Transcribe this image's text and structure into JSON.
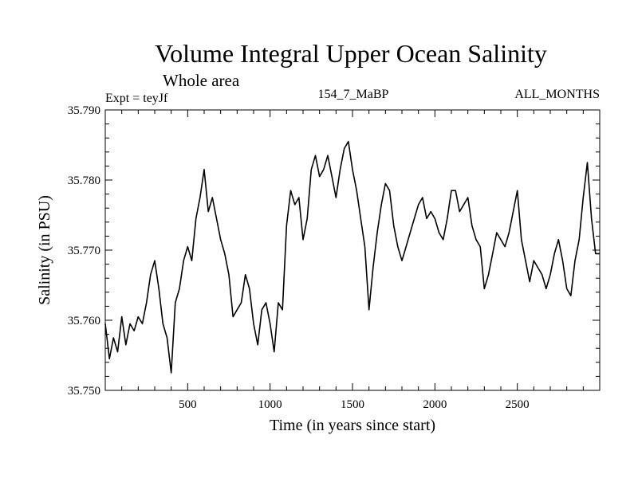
{
  "chart_data": {
    "type": "line",
    "title": "Volume Integral Upper Ocean Salinity",
    "subtitle": "Whole area",
    "experiment": "Expt = teyJf",
    "run_label": "154_7_MaBP",
    "months_label": "ALL_MONTHS",
    "xlabel": "Time (in years since start)",
    "ylabel": "Salinity (in PSU)",
    "xlim": [
      0,
      3000
    ],
    "ylim": [
      35.75,
      35.79
    ],
    "x_ticks": [
      500,
      1000,
      1500,
      2000,
      2500
    ],
    "x_tick_labels": [
      "500",
      "1000",
      "1500",
      "2000",
      "2500"
    ],
    "y_ticks": [
      35.75,
      35.76,
      35.77,
      35.78,
      35.79
    ],
    "y_tick_labels": [
      "35.750",
      "35.760",
      "35.770",
      "35.780",
      "35.790"
    ],
    "line_color": "#000000",
    "series": [
      {
        "name": "salinity",
        "x": [
          0,
          25,
          50,
          75,
          100,
          125,
          150,
          175,
          200,
          225,
          250,
          275,
          300,
          325,
          350,
          375,
          400,
          425,
          450,
          475,
          500,
          525,
          550,
          575,
          600,
          625,
          650,
          675,
          700,
          725,
          750,
          775,
          800,
          825,
          850,
          875,
          900,
          925,
          950,
          975,
          1000,
          1025,
          1050,
          1075,
          1100,
          1125,
          1150,
          1175,
          1200,
          1225,
          1250,
          1275,
          1300,
          1325,
          1350,
          1375,
          1400,
          1425,
          1450,
          1475,
          1500,
          1525,
          1550,
          1575,
          1600,
          1625,
          1650,
          1675,
          1700,
          1725,
          1750,
          1775,
          1800,
          1825,
          1850,
          1875,
          1900,
          1925,
          1950,
          1975,
          2000,
          2025,
          2050,
          2075,
          2100,
          2125,
          2150,
          2175,
          2200,
          2225,
          2250,
          2275,
          2300,
          2325,
          2350,
          2375,
          2400,
          2425,
          2450,
          2475,
          2500,
          2525,
          2550,
          2575,
          2600,
          2625,
          2650,
          2675,
          2700,
          2725,
          2750,
          2775,
          2800,
          2825,
          2850,
          2875,
          2900,
          2925,
          2950,
          2975,
          3000
        ],
        "values": [
          35.7595,
          35.7545,
          35.7575,
          35.7555,
          35.7605,
          35.7565,
          35.7595,
          35.7585,
          35.7605,
          35.7595,
          35.7625,
          35.7665,
          35.7685,
          35.7645,
          35.7595,
          35.7575,
          35.7525,
          35.7625,
          35.7645,
          35.7685,
          35.7705,
          35.7685,
          35.7745,
          35.7775,
          35.7815,
          35.7755,
          35.7775,
          35.7745,
          35.7715,
          35.7695,
          35.7665,
          35.7605,
          35.7615,
          35.7625,
          35.7665,
          35.7645,
          35.7595,
          35.7565,
          35.7615,
          35.7625,
          35.7595,
          35.7555,
          35.7625,
          35.7615,
          35.7735,
          35.7785,
          35.7765,
          35.7775,
          35.7715,
          35.7745,
          35.7815,
          35.7835,
          35.7805,
          35.7815,
          35.7835,
          35.7805,
          35.7775,
          35.7815,
          35.7845,
          35.7855,
          35.7815,
          35.7785,
          35.7745,
          35.7705,
          35.7615,
          35.7675,
          35.7725,
          35.7765,
          35.7795,
          35.7785,
          35.7735,
          35.7705,
          35.7685,
          35.7705,
          35.7725,
          35.7745,
          35.7765,
          35.7775,
          35.7745,
          35.7755,
          35.7745,
          35.7725,
          35.7715,
          35.7745,
          35.7785,
          35.7785,
          35.7755,
          35.7765,
          35.7775,
          35.7735,
          35.7715,
          35.7705,
          35.7645,
          35.7665,
          35.7695,
          35.7725,
          35.7715,
          35.7705,
          35.7725,
          35.7755,
          35.7785,
          35.7715,
          35.7685,
          35.7655,
          35.7685,
          35.7675,
          35.7665,
          35.7645,
          35.7665,
          35.7695,
          35.7715,
          35.7685,
          35.7645,
          35.7635,
          35.7685,
          35.7715,
          35.7775,
          35.7825,
          35.7745,
          35.7695,
          35.7695
        ]
      }
    ]
  }
}
